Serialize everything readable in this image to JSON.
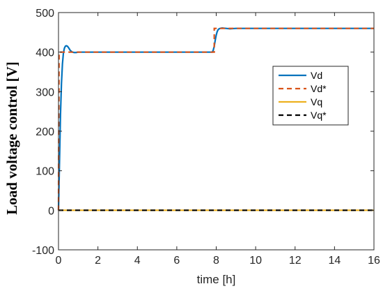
{
  "chart_data": {
    "type": "line",
    "title": "",
    "xlabel": "time [h]",
    "ylabel": "Load voltage control [V]",
    "xlim": [
      0,
      16
    ],
    "ylim": [
      -100,
      500
    ],
    "xticks": [
      0,
      2,
      4,
      6,
      8,
      10,
      12,
      14,
      16
    ],
    "yticks": [
      -100,
      0,
      100,
      200,
      300,
      400,
      500
    ],
    "xtick_labels": [
      "0",
      "2",
      "4",
      "6",
      "8",
      "10",
      "12",
      "14",
      "16"
    ],
    "ytick_labels": [
      "-100",
      "0",
      "100",
      "200",
      "300",
      "400",
      "500"
    ],
    "grid": false,
    "legend_position": "right, mid-upper",
    "series": [
      {
        "name": "Vd",
        "color": "#0072BD",
        "style": "solid",
        "x": [
          0,
          0.05,
          0.1,
          0.15,
          0.2,
          0.25,
          0.3,
          0.35,
          0.4,
          0.45,
          0.5,
          0.55,
          0.6,
          0.7,
          0.8,
          0.9,
          1.0,
          1.2,
          7.8,
          7.85,
          7.9,
          7.95,
          8.0,
          8.05,
          8.1,
          8.15,
          8.2,
          8.3,
          8.5,
          8.7,
          9.0,
          16
        ],
        "y": [
          0,
          120,
          240,
          320,
          370,
          398,
          410,
          415,
          416,
          415,
          412,
          408,
          404,
          400,
          399,
          399,
          400,
          400,
          400,
          405,
          415,
          430,
          443,
          452,
          457,
          459,
          460,
          461,
          460,
          459,
          460,
          460
        ]
      },
      {
        "name": "Vd*",
        "color": "#D95319",
        "style": "dashed",
        "x": [
          0,
          0.03,
          7.9,
          7.9,
          16
        ],
        "y": [
          0,
          400,
          400,
          460,
          460
        ]
      },
      {
        "name": "Vq",
        "color": "#EDB120",
        "style": "solid",
        "x": [
          0,
          16
        ],
        "y": [
          0,
          0
        ]
      },
      {
        "name": "Vq*",
        "color": "#000000",
        "style": "dashed",
        "x": [
          0,
          16
        ],
        "y": [
          0,
          0
        ]
      }
    ]
  }
}
